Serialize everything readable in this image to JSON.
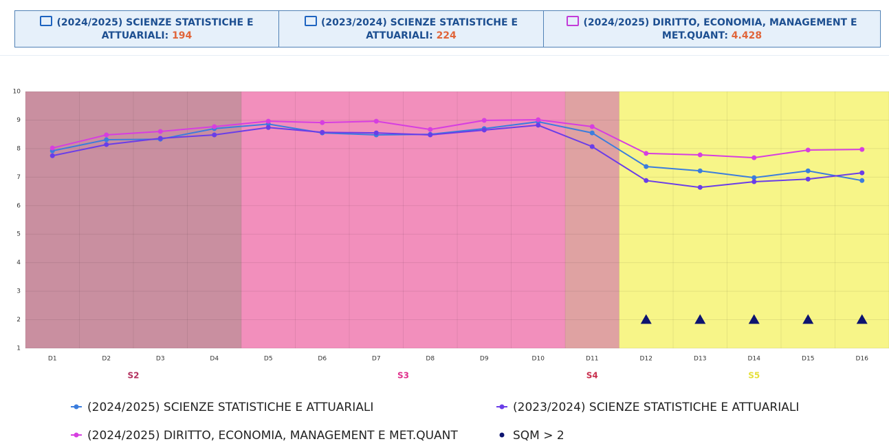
{
  "header": {
    "cards": [
      {
        "label": "(2024/2025) SCIENZE STATISTICHE E ATTUARIALI:",
        "value": "194"
      },
      {
        "label": "(2023/2024) SCIENZE STATISTICHE E ATTUARIALI:",
        "value": "224"
      },
      {
        "label": "(2024/2025) DIRITTO, ECONOMIA, MANAGEMENT E MET.QUANT:",
        "value": "4.428"
      }
    ]
  },
  "chart_data": {
    "type": "line",
    "categories": [
      "D1",
      "D2",
      "D3",
      "D4",
      "D5",
      "D6",
      "D7",
      "D8",
      "D9",
      "D10",
      "D11",
      "D12",
      "D13",
      "D14",
      "D15",
      "D16"
    ],
    "ylim": [
      1,
      10
    ],
    "yticks": [
      1,
      2,
      3,
      4,
      5,
      6,
      7,
      8,
      9,
      10
    ],
    "grid": true,
    "bands": [
      {
        "name": "S2",
        "categories": [
          "D1",
          "D2",
          "D3",
          "D4"
        ],
        "color": "#c98fa0",
        "label_color": "#b3305e"
      },
      {
        "name": "S3",
        "categories": [
          "D5",
          "D6",
          "D7",
          "D8",
          "D9",
          "D10"
        ],
        "color": "#f28fbc",
        "label_color": "#e0308c"
      },
      {
        "name": "S4",
        "categories": [
          "D11"
        ],
        "color": "#dfa2a2",
        "label_color": "#c9304e"
      },
      {
        "name": "S5",
        "categories": [
          "D12",
          "D13",
          "D14",
          "D15",
          "D16"
        ],
        "color": "#f7f588",
        "label_color": "#e6e03a"
      }
    ],
    "series": [
      {
        "name": "(2024/2025) SCIENZE STATISTICHE E ATTUARIALI",
        "color": "#3b7ddd",
        "marker": "circle",
        "values": [
          7.92,
          8.31,
          8.33,
          8.7,
          8.86,
          8.55,
          8.48,
          8.5,
          8.7,
          8.94,
          8.55,
          7.37,
          7.22,
          6.98,
          7.22,
          6.88
        ]
      },
      {
        "name": "(2023/2024) SCIENZE STATISTICHE E ATTUARIALI",
        "color": "#6a3de8",
        "marker": "circle",
        "values": [
          7.75,
          8.14,
          8.36,
          8.48,
          8.74,
          8.57,
          8.55,
          8.48,
          8.65,
          8.82,
          8.07,
          6.88,
          6.64,
          6.84,
          6.93,
          7.15
        ]
      },
      {
        "name": "(2024/2025) DIRITTO, ECONOMIA, MANAGEMENT E MET.QUANT",
        "color": "#d63ee0",
        "marker": "circle",
        "values": [
          8.02,
          8.48,
          8.6,
          8.77,
          8.96,
          8.91,
          8.96,
          8.67,
          8.99,
          9.01,
          8.77,
          7.83,
          7.78,
          7.68,
          7.95,
          7.97
        ]
      },
      {
        "name": "SQM > 2",
        "color": "#0d1470",
        "marker": "triangle",
        "line": false,
        "values": [
          null,
          null,
          null,
          null,
          null,
          null,
          null,
          null,
          null,
          null,
          null,
          2,
          2,
          2,
          2,
          2
        ]
      }
    ]
  }
}
